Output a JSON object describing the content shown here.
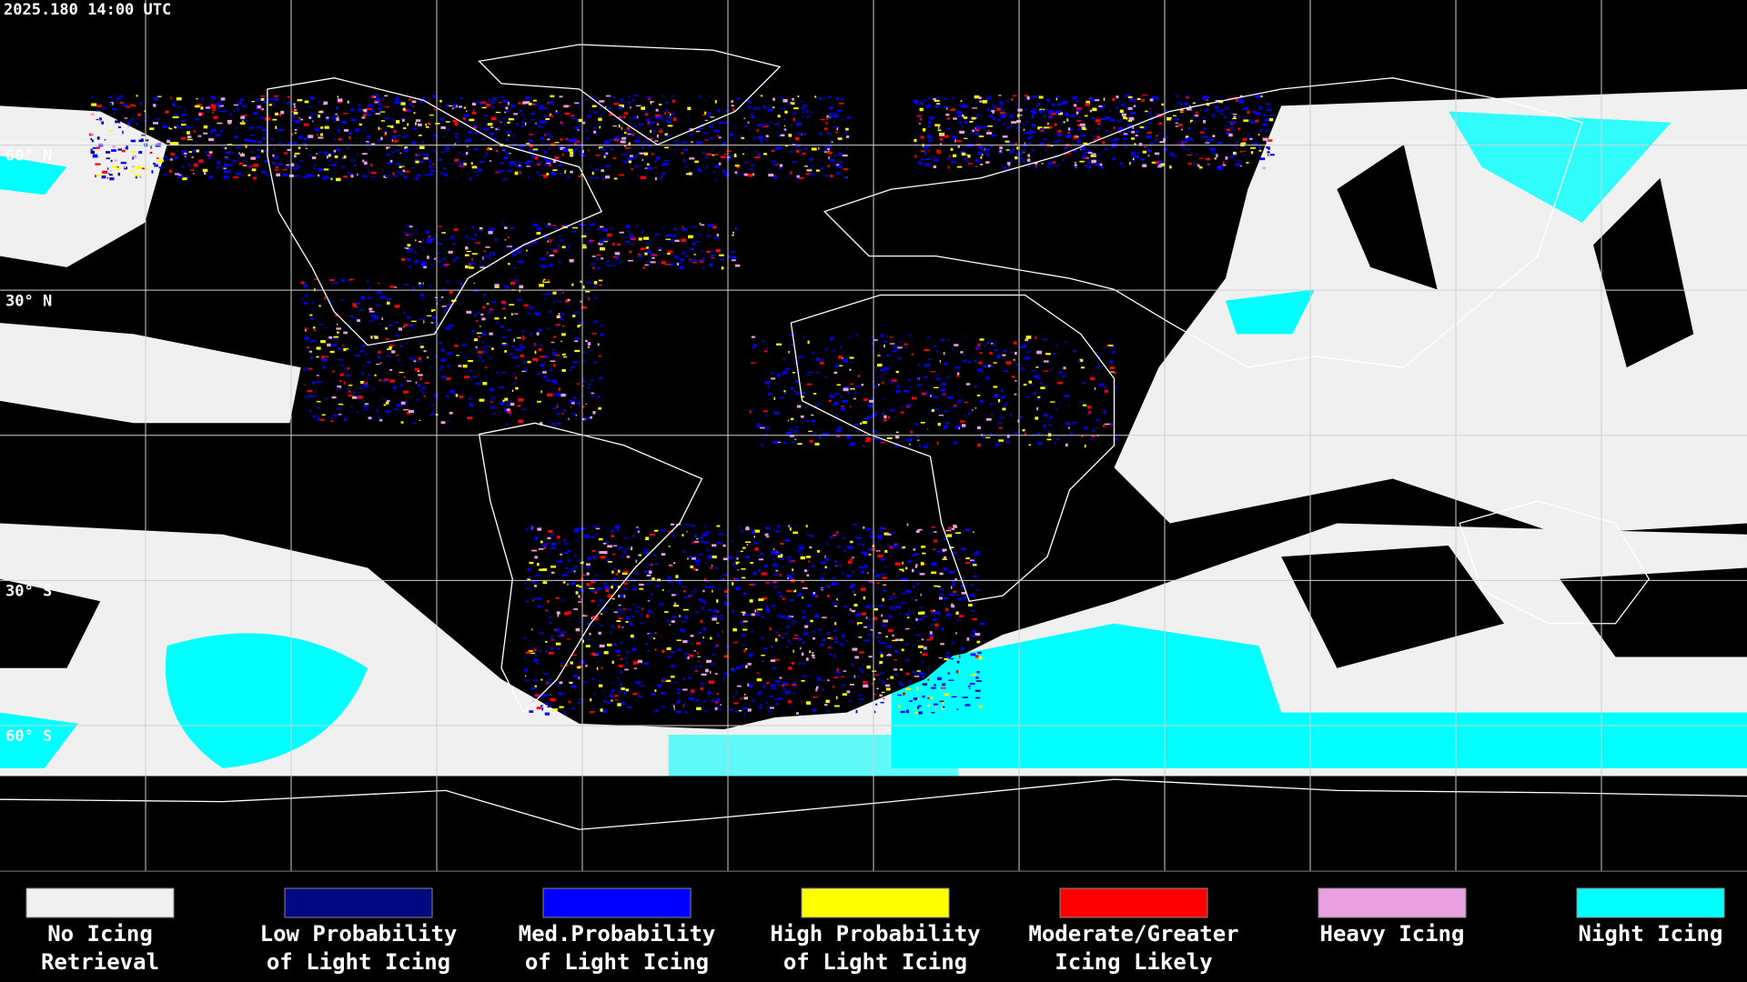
{
  "timestamp": "2025.180 14:00 UTC",
  "latitude_labels": [
    "60° N",
    "30° N",
    "30° S",
    "60° S"
  ],
  "legend": [
    {
      "label_lines": [
        "No Icing",
        "Retrieval"
      ],
      "color": "#f0f0f0"
    },
    {
      "label_lines": [
        "Low Probability",
        "of Light Icing"
      ],
      "color": "#000a80"
    },
    {
      "label_lines": [
        "Med.Probability",
        "of Light Icing"
      ],
      "color": "#0000ff"
    },
    {
      "label_lines": [
        "High Probability",
        "of Light Icing"
      ],
      "color": "#ffff00"
    },
    {
      "label_lines": [
        "Moderate/Greater",
        "Icing Likely"
      ],
      "color": "#ff0000"
    },
    {
      "label_lines": [
        "Heavy Icing"
      ],
      "color": "#e8a0e0"
    },
    {
      "label_lines": [
        "Night Icing"
      ],
      "color": "#00ffff"
    }
  ]
}
